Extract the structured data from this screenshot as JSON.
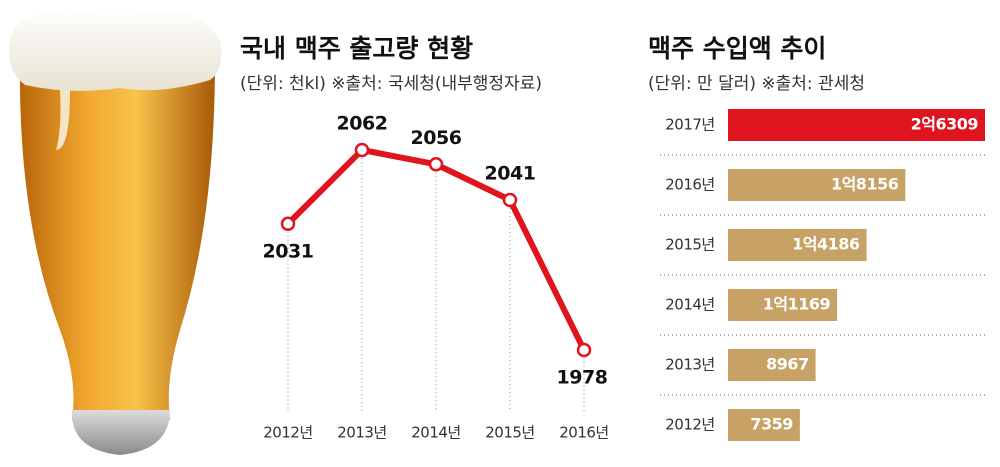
{
  "chart_data": [
    {
      "type": "line",
      "title": "국내 맥주 출고량 현황",
      "subtitle": "(단위: 천kl) ※출처: 국세청(내부행정자료)",
      "categories": [
        "2012년",
        "2013년",
        "2014년",
        "2015년",
        "2016년"
      ],
      "values": [
        2031,
        2062,
        2056,
        2041,
        1978
      ],
      "color": "#e0141e"
    },
    {
      "type": "hbar",
      "title": "맥주 수입액 추이",
      "subtitle": "(단위: 만 달러) ※출처: 관세청",
      "categories": [
        "2017년",
        "2016년",
        "2015년",
        "2014년",
        "2013년",
        "2012년"
      ],
      "values": [
        26309,
        18156,
        14186,
        11169,
        8967,
        7359
      ],
      "value_labels": [
        "2억6309",
        "1억8156",
        "1억4186",
        "1억1169",
        "8967",
        "7359"
      ],
      "colors": [
        "#e0141e",
        "#c8a165",
        "#c8a165",
        "#c8a165",
        "#c8a165",
        "#c8a165"
      ]
    }
  ]
}
